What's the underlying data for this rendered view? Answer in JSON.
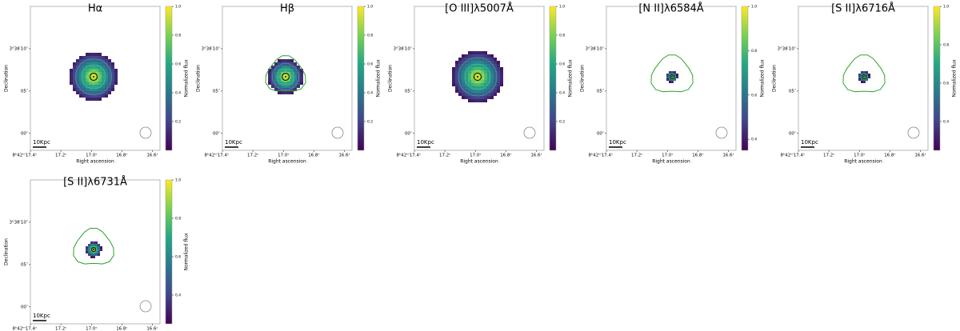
{
  "chart_data": [
    {
      "type": "image",
      "title": "Hα",
      "xlabel": "Right ascension",
      "ylabel": "Declination",
      "colorbar_label": "Normalized flux",
      "scalebar": "10Kpc",
      "colormap": "viridis",
      "xlim": [
        17.4,
        16.55
      ],
      "xticks": [
        {
          "value": 17.4,
          "label": "8ʰ42ᵐ17.4ˢ"
        },
        {
          "value": 17.2,
          "label": "17.2ˢ"
        },
        {
          "value": 17.0,
          "label": "17.0ˢ"
        },
        {
          "value": 16.8,
          "label": "16.8ˢ"
        },
        {
          "value": 16.6,
          "label": "16.6ˢ"
        }
      ],
      "ylim": [
        -2,
        15
      ],
      "yticks": [
        {
          "value": 10,
          "label": "3°38′10″"
        },
        {
          "value": 5,
          "label": "05″"
        },
        {
          "value": 0,
          "label": "00″"
        }
      ],
      "clim": [
        0.0,
        1.0
      ],
      "cticks": [
        0.2,
        0.4,
        0.6,
        0.8,
        {
          "value": 1.0,
          "label": "1.0"
        }
      ]
    },
    {
      "type": "image",
      "title": "Hβ",
      "xlabel": "Right ascension",
      "ylabel": "Declination",
      "colorbar_label": "Normalized flux",
      "scalebar": "10Kpc",
      "colormap": "viridis",
      "xlim": [
        17.4,
        16.55
      ],
      "xticks": [
        {
          "value": 17.4,
          "label": "8ʰ42ᵐ17.4ˢ"
        },
        {
          "value": 17.2,
          "label": "17.2ˢ"
        },
        {
          "value": 17.0,
          "label": "17.0ˢ"
        },
        {
          "value": 16.8,
          "label": "16.8ˢ"
        },
        {
          "value": 16.6,
          "label": "16.6ˢ"
        }
      ],
      "ylim": [
        -2,
        15
      ],
      "yticks": [
        {
          "value": 10,
          "label": "3°38′10″"
        },
        {
          "value": 5,
          "label": "05″"
        },
        {
          "value": 0,
          "label": "00″"
        }
      ],
      "clim": [
        0.0,
        1.0
      ],
      "cticks": [
        0.2,
        0.4,
        0.6,
        0.8,
        {
          "value": 1.0,
          "label": "1.0"
        }
      ]
    },
    {
      "type": "image",
      "title": "[O III]λ5007Å",
      "xlabel": "Right ascension",
      "ylabel": "Declination",
      "colorbar_label": "Normalized flux",
      "scalebar": "10Kpc",
      "colormap": "viridis",
      "xlim": [
        17.4,
        16.55
      ],
      "xticks": [
        {
          "value": 17.4,
          "label": "8ʰ42ᵐ17.4ˢ"
        },
        {
          "value": 17.2,
          "label": "17.2ˢ"
        },
        {
          "value": 17.0,
          "label": "17.0ˢ"
        },
        {
          "value": 16.8,
          "label": "16.8ˢ"
        },
        {
          "value": 16.6,
          "label": "16.6ˢ"
        }
      ],
      "ylim": [
        -2,
        15
      ],
      "yticks": [
        {
          "value": 10,
          "label": "3°38′10″"
        },
        {
          "value": 5,
          "label": "05″"
        },
        {
          "value": 0,
          "label": "00″"
        }
      ],
      "clim": [
        0.0,
        1.0
      ],
      "cticks": [
        0.2,
        0.4,
        0.6,
        0.8,
        {
          "value": 1.0,
          "label": "1.0"
        }
      ]
    },
    {
      "type": "image",
      "title": "[N II]λ6584Å",
      "xlabel": "Right ascension",
      "ylabel": "Declination",
      "colorbar_label": "Normalized flux",
      "scalebar": "10Kpc",
      "colormap": "viridis",
      "xlim": [
        17.4,
        16.55
      ],
      "xticks": [
        {
          "value": 17.4,
          "label": "8ʰ42ᵐ17.4ˢ"
        },
        {
          "value": 17.2,
          "label": "17.2ˢ"
        },
        {
          "value": 17.0,
          "label": "17.0ˢ"
        },
        {
          "value": 16.8,
          "label": "16.8ˢ"
        },
        {
          "value": 16.6,
          "label": "16.6ˢ"
        }
      ],
      "ylim": [
        -2,
        15
      ],
      "yticks": [
        {
          "value": 10,
          "label": "3°38′10″"
        },
        {
          "value": 5,
          "label": "05″"
        },
        {
          "value": 0,
          "label": "00″"
        }
      ],
      "clim": [
        0.35,
        1.0
      ],
      "cticks": [
        0.4,
        0.6,
        0.8,
        {
          "value": 1.0,
          "label": "1.0"
        }
      ]
    },
    {
      "type": "image",
      "title": "[S II]λ6716Å",
      "xlabel": "Right ascension",
      "ylabel": "Declination",
      "colorbar_label": "Normalized flux",
      "scalebar": "10Kpc",
      "colormap": "viridis",
      "xlim": [
        17.4,
        16.55
      ],
      "xticks": [
        {
          "value": 17.4,
          "label": "8ʰ42ᵐ17.4ˢ"
        },
        {
          "value": 17.2,
          "label": "17.2ˢ"
        },
        {
          "value": 17.0,
          "label": "17.0ˢ"
        },
        {
          "value": 16.8,
          "label": "16.8ˢ"
        },
        {
          "value": 16.6,
          "label": "16.6ˢ"
        }
      ],
      "ylim": [
        -2,
        15
      ],
      "yticks": [
        {
          "value": 10,
          "label": "3°38′10″"
        },
        {
          "value": 5,
          "label": "05″"
        },
        {
          "value": 0,
          "label": "00″"
        }
      ],
      "clim": [
        0.25,
        1.0
      ],
      "cticks": [
        0.4,
        0.6,
        0.8,
        {
          "value": 1.0,
          "label": "1.0"
        }
      ]
    },
    {
      "type": "image",
      "title": "[S II]λ6731Å",
      "xlabel": "Right ascension",
      "ylabel": "Declination",
      "colorbar_label": "Normalized flux",
      "scalebar": "10Kpc",
      "colormap": "viridis",
      "xlim": [
        17.4,
        16.55
      ],
      "xticks": [
        {
          "value": 17.4,
          "label": "8ʰ42ᵐ17.4ˢ"
        },
        {
          "value": 17.2,
          "label": "17.2ˢ"
        },
        {
          "value": 17.0,
          "label": "17.0ˢ"
        },
        {
          "value": 16.8,
          "label": "16.8ˢ"
        },
        {
          "value": 16.6,
          "label": "16.6ˢ"
        }
      ],
      "ylim": [
        -2,
        15
      ],
      "yticks": [
        {
          "value": 10,
          "label": "3°38′10″"
        },
        {
          "value": 5,
          "label": "05″"
        },
        {
          "value": 0,
          "label": "00″"
        }
      ],
      "clim": [
        0.25,
        1.0
      ],
      "cticks": [
        0.4,
        0.6,
        0.8,
        {
          "value": 1.0,
          "label": "1.0"
        }
      ]
    }
  ]
}
